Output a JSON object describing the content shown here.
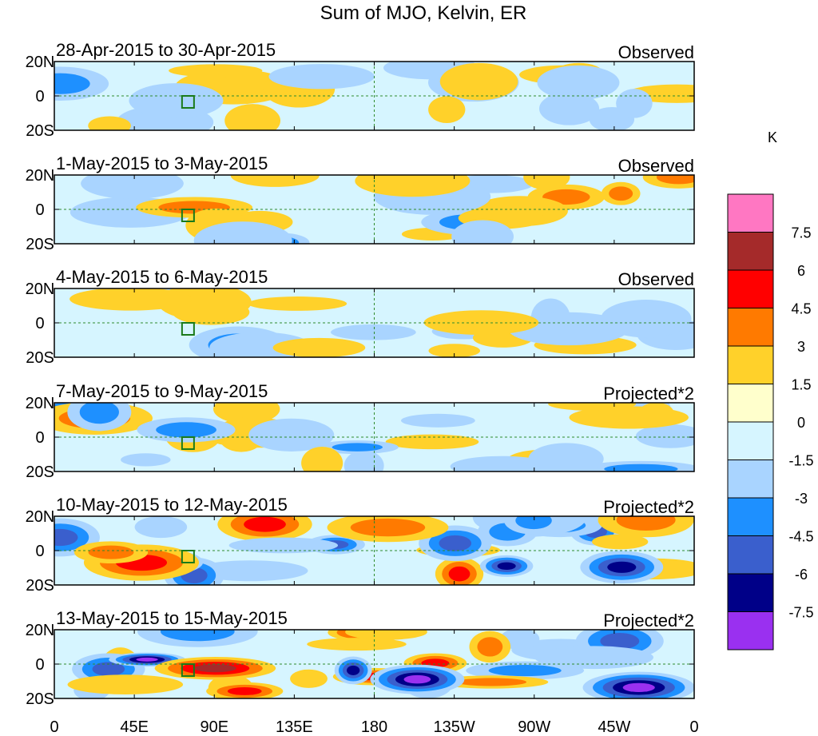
{
  "chart_data": {
    "type": "heatmap",
    "title": "Sum of MJO, Kelvin, ER",
    "units_label": "K",
    "x_ticks": [
      "0",
      "45E",
      "90E",
      "135E",
      "180",
      "135W",
      "90W",
      "45W",
      "0"
    ],
    "y_ticks": [
      "20N",
      "0",
      "20S"
    ],
    "x_range_deg_east": [
      0,
      360
    ],
    "y_range_deg": [
      -20,
      20
    ],
    "colorbar": {
      "labels": [
        "7.5",
        "6",
        "4.5",
        "3",
        "1.5",
        "0",
        "-1.5",
        "-3",
        "-4.5",
        "-6",
        "-7.5"
      ],
      "colors": [
        "#ff77c2",
        "#a52a2a",
        "#ff0000",
        "#ff7a00",
        "#ffd12a",
        "#ffffcc",
        "#d6f5ff",
        "#a9d4ff",
        "#1e90ff",
        "#3a5fcd",
        "#000088",
        "#9a30f0"
      ]
    },
    "panels": [
      {
        "period": "28-Apr-2015 to 30-Apr-2015",
        "kind": "Observed"
      },
      {
        "period": "1-May-2015 to 3-May-2015",
        "kind": "Observed"
      },
      {
        "period": "4-May-2015 to 6-May-2015",
        "kind": "Observed"
      },
      {
        "period": "7-May-2015 to 9-May-2015",
        "kind": "Projected*2"
      },
      {
        "period": "10-May-2015 to 12-May-2015",
        "kind": "Projected*2"
      },
      {
        "period": "13-May-2015 to 15-May-2015",
        "kind": "Projected*2"
      }
    ]
  }
}
